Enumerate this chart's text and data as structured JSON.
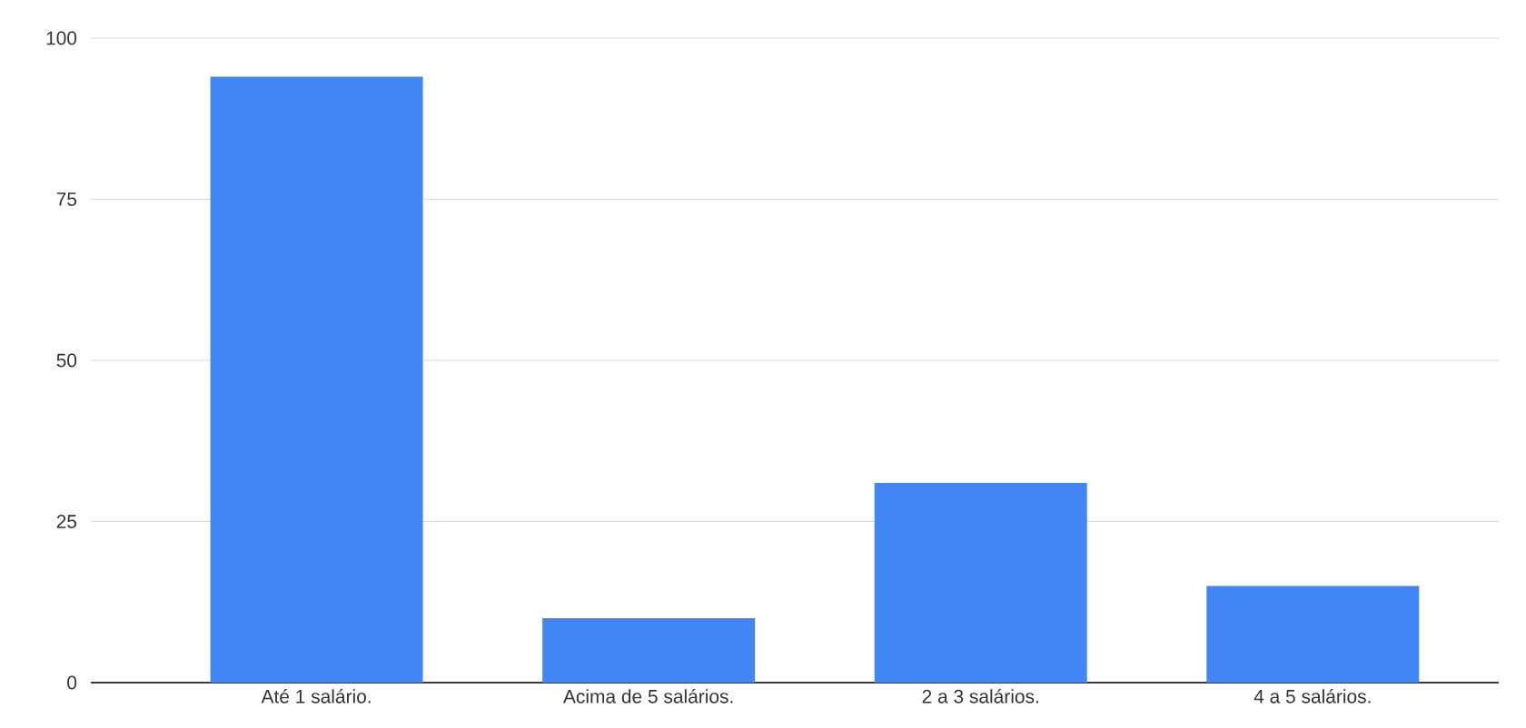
{
  "chart_data": {
    "type": "bar",
    "categories": [
      "Até 1 salário.",
      "Acima de 5 salários.",
      "2 a 3 salários.",
      "4 a 5 salários."
    ],
    "values": [
      94,
      10,
      31,
      15
    ],
    "color": "#4285f4",
    "ylim": [
      0,
      100
    ],
    "yticks": [
      0,
      25,
      50,
      75,
      100
    ],
    "grid": "y"
  }
}
